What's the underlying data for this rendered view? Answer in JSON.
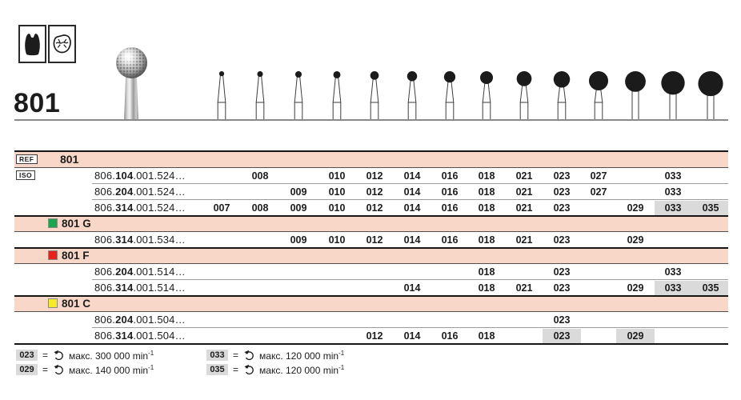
{
  "product": {
    "number": "801"
  },
  "header": {
    "icons": [
      {
        "name": "molar-crown-icon"
      },
      {
        "name": "occlusal-surface-icon"
      }
    ]
  },
  "columns": [
    "007",
    "008",
    "009",
    "010",
    "012",
    "014",
    "016",
    "018",
    "021",
    "023",
    "027",
    "029",
    "033",
    "035"
  ],
  "table": {
    "rows": [
      {
        "kind": "band",
        "badge": "REF",
        "label": "801"
      },
      {
        "kind": "data",
        "badge": "ISO",
        "prefix": "806.",
        "mid": "104",
        "suffix": ".001.524…",
        "sizes": [
          "008",
          "010",
          "012",
          "014",
          "016",
          "018",
          "021",
          "023",
          "027",
          "033"
        ],
        "sep": "thin"
      },
      {
        "kind": "data",
        "prefix": "806.",
        "mid": "204",
        "suffix": ".001.524…",
        "sizes": [
          "009",
          "010",
          "012",
          "014",
          "016",
          "018",
          "021",
          "023",
          "027",
          "033"
        ],
        "sep": "thin"
      },
      {
        "kind": "data",
        "prefix": "806.",
        "mid": "314",
        "suffix": ".001.524…",
        "sizes": [
          "007",
          "008",
          "009",
          "010",
          "012",
          "014",
          "016",
          "018",
          "021",
          "023",
          "029",
          "033",
          "035"
        ],
        "grayband_from": "033",
        "sep": "thick"
      },
      {
        "kind": "band",
        "swatch": "green",
        "label": "801 G"
      },
      {
        "kind": "data",
        "prefix": "806.",
        "mid": "314",
        "suffix": ".001.534…",
        "sizes": [
          "009",
          "010",
          "012",
          "014",
          "016",
          "018",
          "021",
          "023",
          "029"
        ],
        "sep": "thick"
      },
      {
        "kind": "band",
        "swatch": "red",
        "label": "801 F"
      },
      {
        "kind": "data",
        "prefix": "806.",
        "mid": "204",
        "suffix": ".001.514…",
        "sizes": [
          "018",
          "023",
          "033"
        ],
        "sep": "thin"
      },
      {
        "kind": "data",
        "prefix": "806.",
        "mid": "314",
        "suffix": ".001.514…",
        "sizes": [
          "014",
          "018",
          "021",
          "023",
          "029",
          "033",
          "035"
        ],
        "grayband_from": "033",
        "sep": "thick"
      },
      {
        "kind": "band",
        "swatch": "yellow",
        "label": "801 C"
      },
      {
        "kind": "data",
        "prefix": "806.",
        "mid": "204",
        "suffix": ".001.504…",
        "sizes": [
          "023"
        ],
        "sep": "thin"
      },
      {
        "kind": "data",
        "prefix": "806.",
        "mid": "314",
        "suffix": ".001.504…",
        "sizes": [
          "012",
          "014",
          "016",
          "018",
          "023",
          "029"
        ],
        "graycells": [
          "023",
          "029"
        ],
        "sep": "thick"
      }
    ]
  },
  "legend": {
    "eq": "=",
    "items": [
      {
        "size": "023",
        "text": "макс. 300 000 min",
        "sup": "-1"
      },
      {
        "size": "029",
        "text": "макс. 140 000 min",
        "sup": "-1"
      },
      {
        "size": "033",
        "text": "макс. 120 000 min",
        "sup": "-1"
      },
      {
        "size": "035",
        "text": "макс. 120 000 min",
        "sup": "-1"
      }
    ]
  },
  "colors": {
    "band_pink": "#f8d6c8",
    "highlight_gray": "#dadada",
    "swatch_green": "#1ea44d",
    "swatch_red": "#e7221b",
    "swatch_yellow": "#f7ea28"
  }
}
